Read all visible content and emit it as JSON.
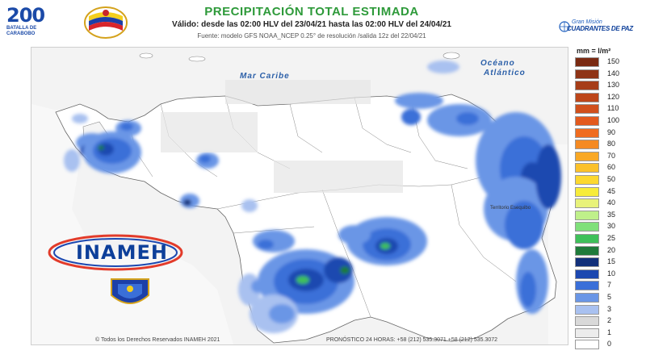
{
  "header": {
    "title": "PRECIPITACIÓN TOTAL ESTIMADA",
    "valid": "Válido: desde las 02:00 HLV del 23/04/21 hasta las 02:00 HLV del 24/04/21",
    "source": "Fuente: modelo GFS NOAA_NCEP 0.25° de resolución /salida 12z del 22/04/21",
    "logo_left_number": "200",
    "logo_left_text": "BATALLA DE CARABOBO",
    "logo_right_line1": "Gran Misión",
    "logo_right_line2": "CUADRANTES DE PAZ"
  },
  "map": {
    "sea_label": "Mar Caribe",
    "ocean_label_line1": "Océano",
    "ocean_label_line2": "Atlántico",
    "region_label": "Territorio Esequibo"
  },
  "logos": {
    "inameh": "INAMEH"
  },
  "legend": {
    "unit": "mm = l/m²",
    "items": [
      {
        "label": "150",
        "color": "#7a2a12"
      },
      {
        "label": "140",
        "color": "#8f3416"
      },
      {
        "label": "130",
        "color": "#a63d18"
      },
      {
        "label": "120",
        "color": "#bd461a"
      },
      {
        "label": "110",
        "color": "#d1501c"
      },
      {
        "label": "100",
        "color": "#e35a1e"
      },
      {
        "label": "90",
        "color": "#f06c1f"
      },
      {
        "label": "80",
        "color": "#f58a22"
      },
      {
        "label": "70",
        "color": "#f9a825"
      },
      {
        "label": "60",
        "color": "#fbc12a"
      },
      {
        "label": "50",
        "color": "#fcd82f"
      },
      {
        "label": "45",
        "color": "#f7ec3a"
      },
      {
        "label": "40",
        "color": "#e8f27a"
      },
      {
        "label": "35",
        "color": "#bff08a"
      },
      {
        "label": "30",
        "color": "#7fe07a"
      },
      {
        "label": "25",
        "color": "#3fc05a"
      },
      {
        "label": "20",
        "color": "#1f7a3a"
      },
      {
        "label": "15",
        "color": "#12307a"
      },
      {
        "label": "10",
        "color": "#1c48b0"
      },
      {
        "label": "7",
        "color": "#3a6fd8"
      },
      {
        "label": "5",
        "color": "#6a96e6"
      },
      {
        "label": "3",
        "color": "#a9c1f0"
      },
      {
        "label": "2",
        "color": "#d9d9d9"
      },
      {
        "label": "1",
        "color": "#ececec"
      },
      {
        "label": "0",
        "color": "#ffffff"
      }
    ]
  },
  "footer": {
    "copyright": "© Todos los Derechos Reservados INAMEH 2021",
    "phone": "PRONÓSTICO 24 HORAS: +58 (212) 535.3071 +58 (212) 535.3072"
  }
}
